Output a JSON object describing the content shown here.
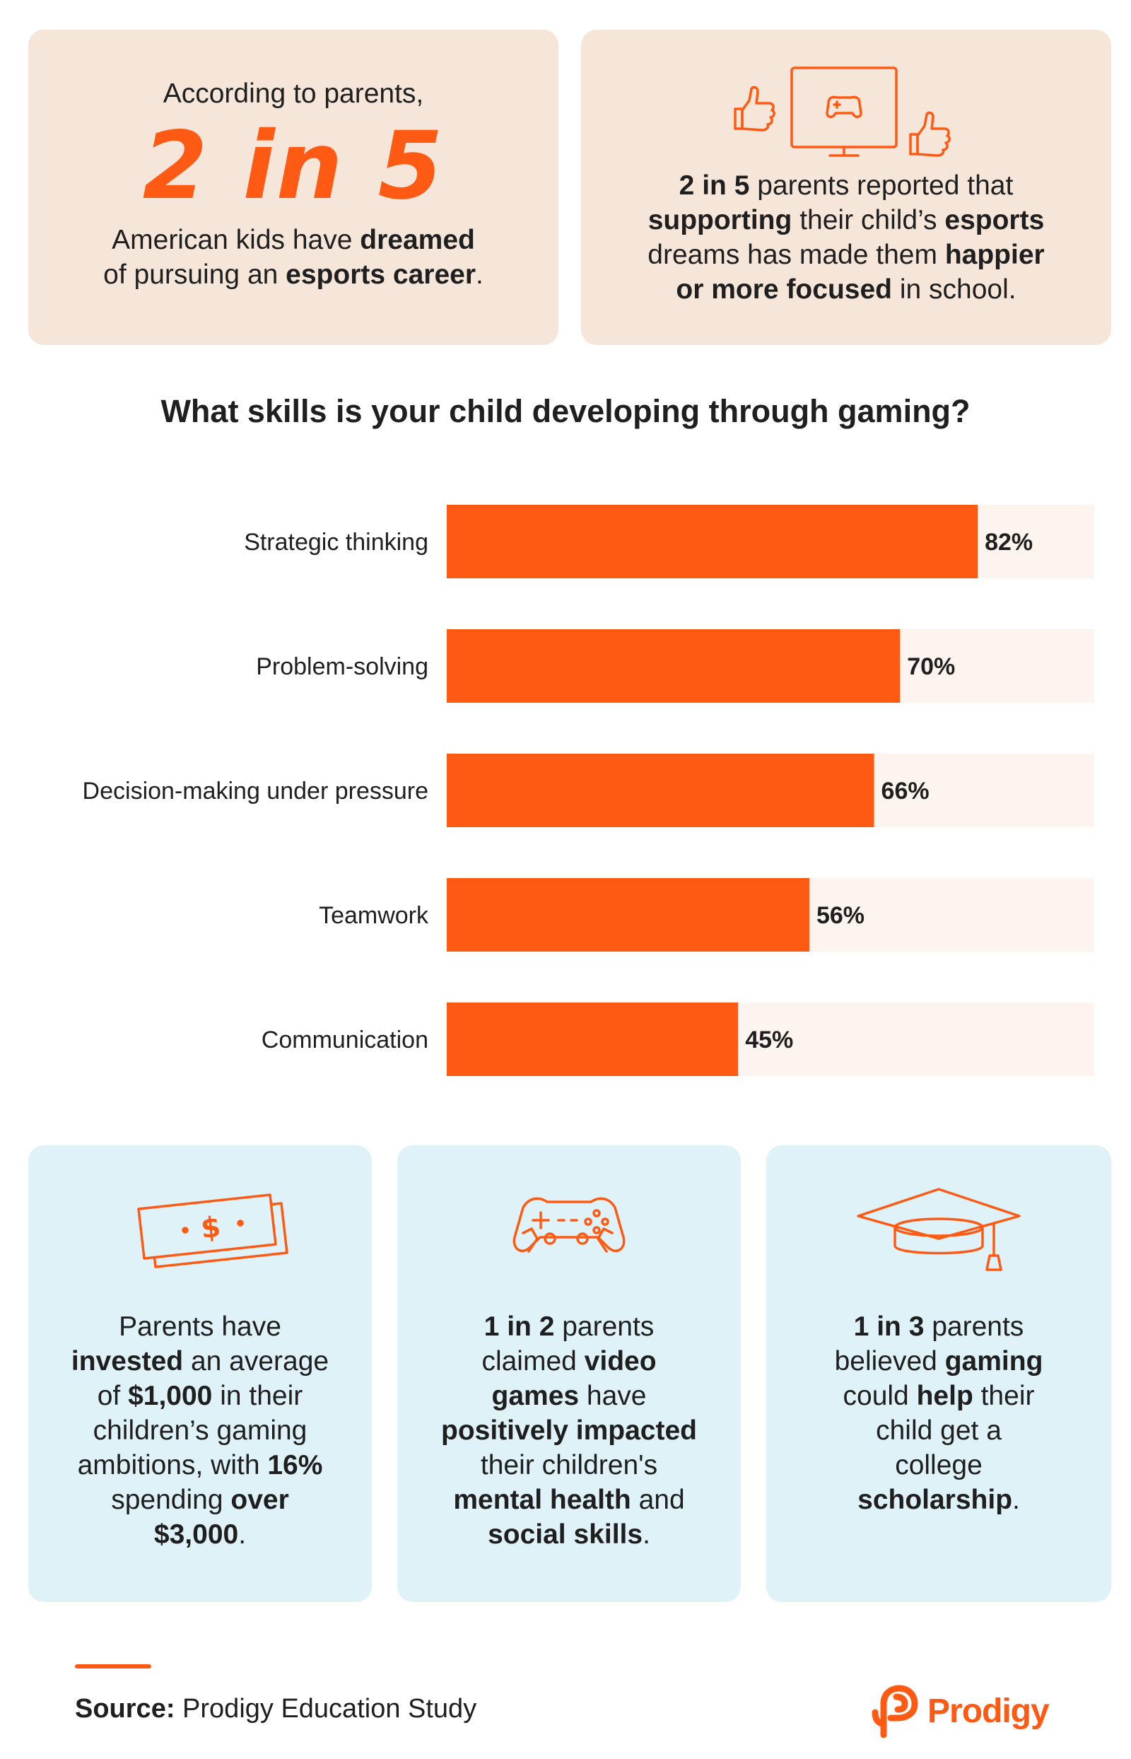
{
  "top_left": {
    "line1": "According to parents,",
    "stat": "2 in 5",
    "line2": "American kids have",
    "line2_bold": "dreamed",
    "line3": "of pursuing an",
    "line3_bold": "esports career",
    "line3_end": "."
  },
  "top_right": {
    "icons": [
      "thumbs-up-icon",
      "monitor-gamepad-icon",
      "thumbs-up-icon"
    ],
    "p1_bold": "2 in 5",
    "p1": "parents reported that",
    "p2_bold": "supporting",
    "p2": "their child’s",
    "p2_bold2": "esports",
    "p3": "dreams has made them",
    "p3_bold": "happier",
    "p4_bold": "or more focused",
    "p4": "in school."
  },
  "chart_data": {
    "type": "bar",
    "orientation": "horizontal",
    "title": "What skills is your child developing through gaming?",
    "categories": [
      "Strategic thinking",
      "Problem-solving",
      "Decision-making under pressure",
      "Teamwork",
      "Communication"
    ],
    "values": [
      82,
      70,
      66,
      56,
      45
    ],
    "value_labels": [
      "82%",
      "70%",
      "66%",
      "56%",
      "45%"
    ],
    "xlim": [
      0,
      100
    ],
    "grid": false,
    "bar_color": "#ff5a14",
    "track_color": "#fdf3ef"
  },
  "cards": [
    {
      "icon": "money-bill-icon",
      "lines": [
        [
          {
            "t": "Parents have"
          }
        ],
        [
          {
            "t": "invested",
            "b": true
          },
          {
            "t": " an average"
          }
        ],
        [
          {
            "t": "of "
          },
          {
            "t": "$1,000",
            "b": true
          },
          {
            "t": " in their"
          }
        ],
        [
          {
            "t": "children’s gaming"
          }
        ],
        [
          {
            "t": "ambitions, with "
          },
          {
            "t": "16%",
            "b": true
          }
        ],
        [
          {
            "t": "spending "
          },
          {
            "t": "over",
            "b": true
          }
        ],
        [
          {
            "t": "$3,000",
            "b": true
          },
          {
            "t": "."
          }
        ]
      ]
    },
    {
      "icon": "game-controller-icon",
      "lines": [
        [
          {
            "t": "1 in 2",
            "b": true
          },
          {
            "t": " parents"
          }
        ],
        [
          {
            "t": "claimed "
          },
          {
            "t": "video",
            "b": true
          }
        ],
        [
          {
            "t": "games",
            "b": true
          },
          {
            "t": " have"
          }
        ],
        [
          {
            "t": "positively impacted",
            "b": true
          }
        ],
        [
          {
            "t": "their children's"
          }
        ],
        [
          {
            "t": "mental health",
            "b": true
          },
          {
            "t": " and"
          }
        ],
        [
          {
            "t": "social skills",
            "b": true
          },
          {
            "t": "."
          }
        ]
      ]
    },
    {
      "icon": "graduation-cap-icon",
      "lines": [
        [
          {
            "t": "1 in 3",
            "b": true
          },
          {
            "t": " parents"
          }
        ],
        [
          {
            "t": "believed "
          },
          {
            "t": "gaming",
            "b": true
          }
        ],
        [
          {
            "t": "could "
          },
          {
            "t": "help",
            "b": true
          },
          {
            "t": " their"
          }
        ],
        [
          {
            "t": "child get a"
          }
        ],
        [
          {
            "t": "college"
          }
        ],
        [
          {
            "t": "scholarship",
            "b": true
          },
          {
            "t": "."
          }
        ]
      ]
    }
  ],
  "footer": {
    "source_label": "Source:",
    "source_text": "Prodigy Education Study",
    "logo_text": "Prodigy",
    "accent": "#ff5a14"
  }
}
